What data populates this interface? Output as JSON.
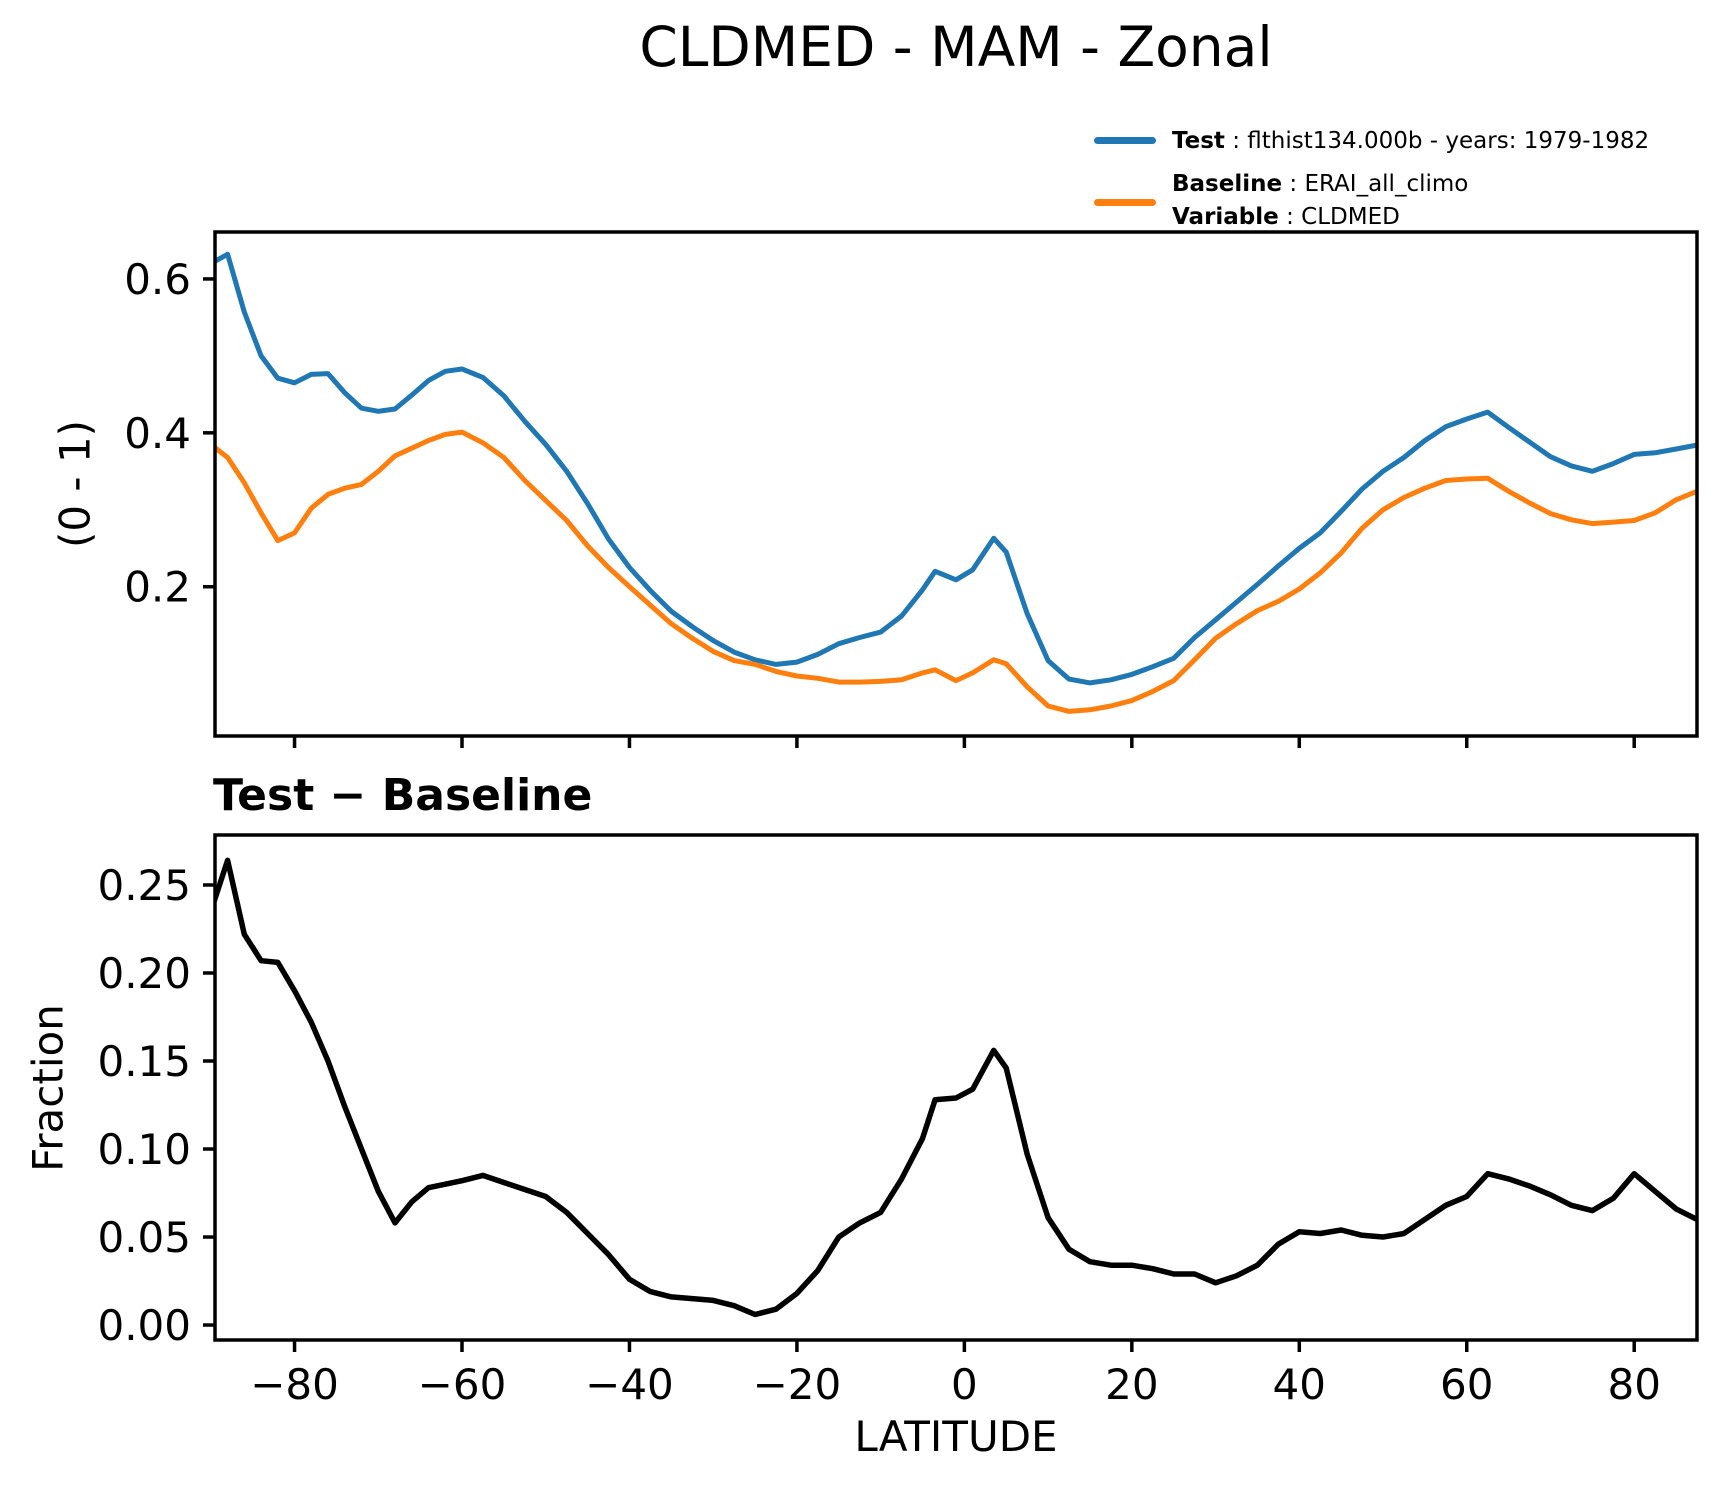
{
  "header": {
    "title": "CLDMED - MAM - Zonal"
  },
  "legend": {
    "entries": [
      {
        "label_bold": "Test",
        "label_rest": " : flthist134.000b - years: 1979-1982",
        "color": "#1f77b4"
      },
      {
        "label_bold": "Baseline",
        "label_rest": " : ERAI_all_climo",
        "color": "#ff7f0e"
      },
      {
        "label_bold": "Variable",
        "label_rest": " : CLDMED",
        "color": "#ff7f0e"
      }
    ]
  },
  "chart_data": [
    {
      "type": "line",
      "panel": "top",
      "title": "CLDMED - MAM - Zonal",
      "xlabel": "",
      "ylabel": "(0 - 1)",
      "grid": false,
      "legend_position": "outside upper right, frameless",
      "xlim": [
        -89.5,
        87.5
      ],
      "ylim": [
        0.006,
        0.661
      ],
      "xticks": [
        -80,
        -60,
        -40,
        -20,
        0,
        20,
        40,
        60,
        80
      ],
      "xtick_labels": [],
      "yticks": [
        0.2,
        0.4,
        0.6
      ],
      "ytick_labels": [
        "0.2",
        "0.4",
        "0.6"
      ],
      "x": [
        -90,
        -88,
        -86,
        -84,
        -82,
        -80,
        -78,
        -76,
        -74,
        -72,
        -70,
        -68,
        -66,
        -64,
        -62,
        -60,
        -57.5,
        -55,
        -52.5,
        -50,
        -47.5,
        -45,
        -42.5,
        -40,
        -37.5,
        -35,
        -32.5,
        -30,
        -27.5,
        -25,
        -22.5,
        -20,
        -17.5,
        -15,
        -12.5,
        -10,
        -7.5,
        -5,
        -3.5,
        -1,
        1,
        3.5,
        5,
        7.5,
        10,
        12.5,
        15,
        17.5,
        20,
        22.5,
        25,
        27.5,
        30,
        32.5,
        35,
        37.5,
        40,
        42.5,
        45,
        47.5,
        50,
        52.5,
        55,
        57.5,
        60,
        62.5,
        65,
        67.5,
        70,
        72.5,
        75,
        77.5,
        80,
        82.5,
        85,
        87.5,
        90
      ],
      "series": [
        {
          "name": "Test : flthist134.000b - years: 1979-1982",
          "color": "#1f77b4",
          "values": [
            0.62,
            0.632,
            0.557,
            0.5,
            0.471,
            0.465,
            0.476,
            0.477,
            0.452,
            0.432,
            0.428,
            0.431,
            0.449,
            0.468,
            0.48,
            0.483,
            0.472,
            0.448,
            0.415,
            0.385,
            0.35,
            0.308,
            0.262,
            0.225,
            0.195,
            0.168,
            0.148,
            0.13,
            0.115,
            0.105,
            0.099,
            0.102,
            0.112,
            0.126,
            0.134,
            0.141,
            0.162,
            0.196,
            0.22,
            0.209,
            0.222,
            0.263,
            0.245,
            0.165,
            0.104,
            0.08,
            0.075,
            0.079,
            0.086,
            0.096,
            0.107,
            0.134,
            0.157,
            0.18,
            0.203,
            0.227,
            0.25,
            0.27,
            0.298,
            0.327,
            0.35,
            0.368,
            0.39,
            0.408,
            0.418,
            0.427,
            0.407,
            0.388,
            0.369,
            0.357,
            0.35,
            0.36,
            0.372,
            0.374,
            0.379,
            0.384,
            0.39
          ]
        },
        {
          "name": "Baseline : ERAI_all_climo (Variable : CLDMED)",
          "color": "#ff7f0e",
          "values": [
            0.385,
            0.368,
            0.335,
            0.296,
            0.26,
            0.27,
            0.302,
            0.32,
            0.328,
            0.333,
            0.35,
            0.37,
            0.38,
            0.39,
            0.398,
            0.401,
            0.387,
            0.368,
            0.338,
            0.312,
            0.286,
            0.253,
            0.225,
            0.2,
            0.176,
            0.152,
            0.133,
            0.116,
            0.104,
            0.099,
            0.09,
            0.084,
            0.081,
            0.076,
            0.076,
            0.077,
            0.079,
            0.088,
            0.092,
            0.078,
            0.088,
            0.105,
            0.1,
            0.07,
            0.045,
            0.038,
            0.04,
            0.045,
            0.052,
            0.064,
            0.078,
            0.105,
            0.133,
            0.152,
            0.169,
            0.181,
            0.197,
            0.218,
            0.244,
            0.276,
            0.3,
            0.316,
            0.328,
            0.338,
            0.34,
            0.341,
            0.324,
            0.309,
            0.295,
            0.287,
            0.282,
            0.284,
            0.286,
            0.296,
            0.313,
            0.324,
            0.336
          ]
        }
      ]
    },
    {
      "type": "line",
      "panel": "bottom",
      "title": "Test − Baseline",
      "xlabel": "LATITUDE",
      "ylabel": "Fraction",
      "grid": false,
      "xlim": [
        -89.5,
        87.5
      ],
      "ylim": [
        -0.0085,
        0.2784
      ],
      "xticks": [
        -80,
        -60,
        -40,
        -20,
        0,
        20,
        40,
        60,
        80
      ],
      "xtick_labels": [
        "−80",
        "−60",
        "−40",
        "−20",
        "0",
        "20",
        "40",
        "60",
        "80"
      ],
      "yticks": [
        0.0,
        0.05,
        0.1,
        0.15,
        0.2,
        0.25
      ],
      "ytick_labels": [
        "0.00",
        "0.05",
        "0.10",
        "0.15",
        "0.20",
        "0.25"
      ],
      "x": [
        -90,
        -88,
        -86,
        -84,
        -82,
        -80,
        -78,
        -76,
        -74,
        -72,
        -70,
        -68,
        -66,
        -64,
        -62,
        -60,
        -57.5,
        -55,
        -52.5,
        -50,
        -47.5,
        -45,
        -42.5,
        -40,
        -37.5,
        -35,
        -32.5,
        -30,
        -27.5,
        -25,
        -22.5,
        -20,
        -17.5,
        -15,
        -12.5,
        -10,
        -7.5,
        -5,
        -3.5,
        -1,
        1,
        3.5,
        5,
        7.5,
        10,
        12.5,
        15,
        17.5,
        20,
        22.5,
        25,
        27.5,
        30,
        32.5,
        35,
        37.5,
        40,
        42.5,
        45,
        47.5,
        50,
        52.5,
        55,
        57.5,
        60,
        62.5,
        65,
        67.5,
        70,
        72.5,
        75,
        77.5,
        80,
        82.5,
        85,
        87.5,
        90
      ],
      "series": [
        {
          "name": "Test − Baseline",
          "color": "#000000",
          "values": [
            0.235,
            0.264,
            0.222,
            0.207,
            0.206,
            0.19,
            0.172,
            0.15,
            0.124,
            0.1,
            0.076,
            0.058,
            0.07,
            0.078,
            0.08,
            0.082,
            0.085,
            0.081,
            0.077,
            0.073,
            0.064,
            0.052,
            0.04,
            0.026,
            0.019,
            0.016,
            0.015,
            0.014,
            0.011,
            0.006,
            0.009,
            0.018,
            0.031,
            0.05,
            0.058,
            0.064,
            0.083,
            0.106,
            0.128,
            0.129,
            0.134,
            0.156,
            0.146,
            0.097,
            0.061,
            0.043,
            0.036,
            0.034,
            0.034,
            0.032,
            0.029,
            0.029,
            0.024,
            0.028,
            0.034,
            0.046,
            0.053,
            0.052,
            0.054,
            0.051,
            0.05,
            0.052,
            0.06,
            0.068,
            0.073,
            0.086,
            0.083,
            0.079,
            0.074,
            0.068,
            0.065,
            0.072,
            0.086,
            0.076,
            0.066,
            0.06,
            0.054
          ]
        }
      ]
    }
  ]
}
